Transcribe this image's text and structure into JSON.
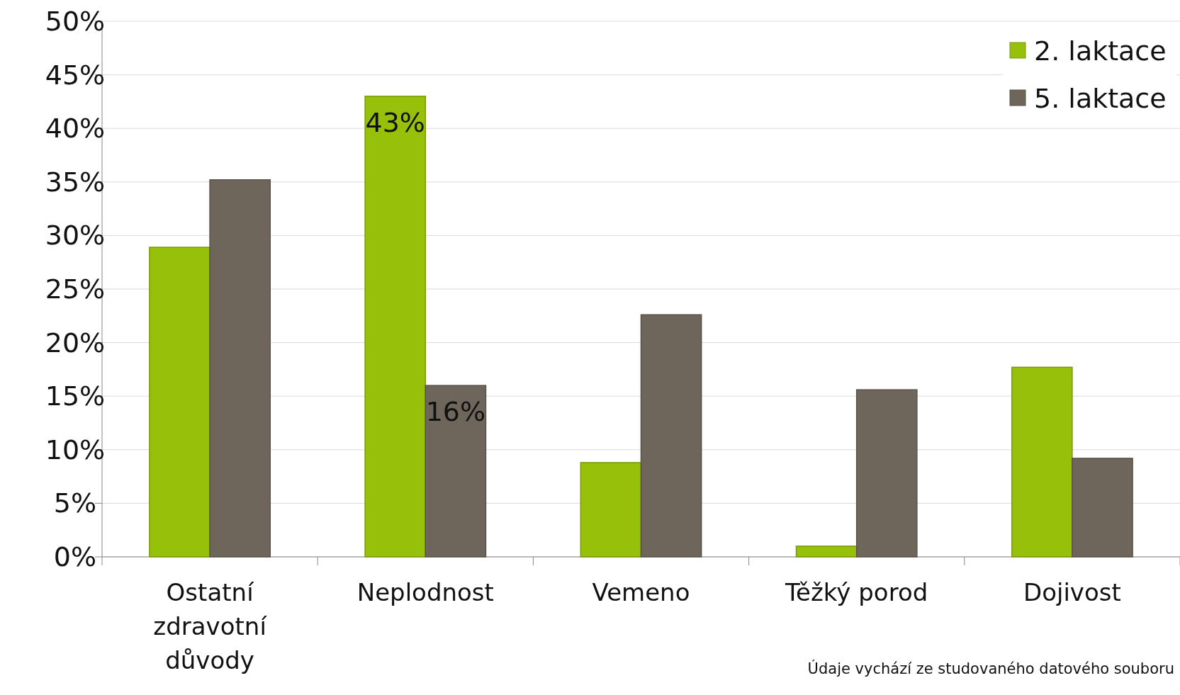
{
  "chart_data": {
    "type": "bar",
    "categories": [
      "Ostatní zdravotní důvody",
      "Neplodnost",
      "Vemeno",
      "Těžký porod",
      "Dojivost"
    ],
    "series": [
      {
        "name": "2. laktace",
        "color": "#96c00a",
        "values": [
          28.9,
          43,
          8.8,
          1.0,
          17.7
        ],
        "value_labels": [
          null,
          "43%",
          null,
          null,
          null
        ]
      },
      {
        "name": "5. laktace",
        "color": "#6e665a",
        "values": [
          35.2,
          16,
          22.6,
          15.6,
          9.2
        ],
        "value_labels": [
          null,
          "16%",
          null,
          null,
          null
        ]
      }
    ],
    "ylim": [
      0,
      50
    ],
    "yticks": [
      {
        "value": 0,
        "label": "0%"
      },
      {
        "value": 5,
        "label": "5%"
      },
      {
        "value": 10,
        "label": "10%"
      },
      {
        "value": 15,
        "label": "15%"
      },
      {
        "value": 20,
        "label": "20%"
      },
      {
        "value": 25,
        "label": "25%"
      },
      {
        "value": 30,
        "label": "30%"
      },
      {
        "value": 35,
        "label": "35%"
      },
      {
        "value": 40,
        "label": "40%"
      },
      {
        "value": 45,
        "label": "45%"
      },
      {
        "value": 50,
        "label": "50%"
      }
    ],
    "grid": "y",
    "legend": "top right",
    "annotations": [
      "Údaje vychází ze studovaného datového souboru"
    ]
  }
}
